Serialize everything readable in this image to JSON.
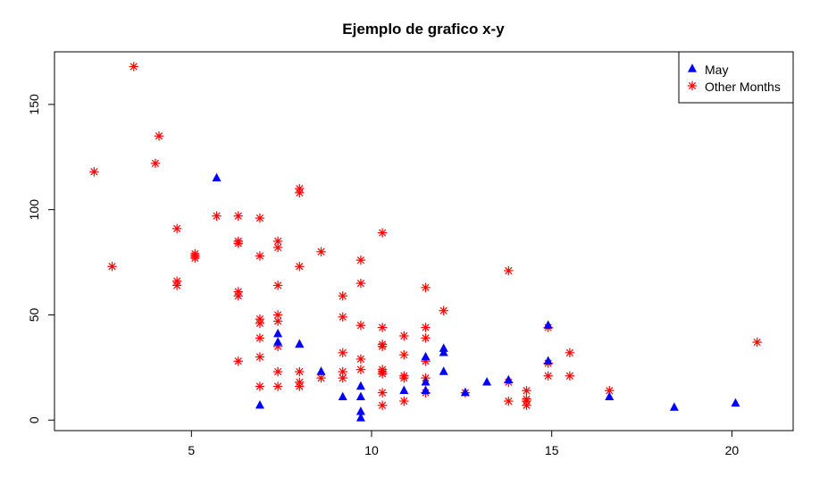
{
  "chart_data": {
    "type": "scatter",
    "title": "Ejemplo de grafico x-y",
    "xlabel": "",
    "ylabel": "",
    "xlim": [
      1.2,
      21.7
    ],
    "ylim": [
      -5,
      175
    ],
    "x_ticks": [
      5,
      10,
      15,
      20
    ],
    "y_ticks": [
      0,
      50,
      100,
      150
    ],
    "grid": false,
    "legend_position": "top-right",
    "series": [
      {
        "name": "May",
        "marker": "triangle",
        "color": "#0000ff",
        "points": [
          [
            5.7,
            115
          ],
          [
            6.9,
            7
          ],
          [
            7.4,
            41
          ],
          [
            7.4,
            37
          ],
          [
            8.0,
            36
          ],
          [
            8.0,
            36
          ],
          [
            8.6,
            23
          ],
          [
            9.2,
            11
          ],
          [
            9.7,
            16
          ],
          [
            9.7,
            11
          ],
          [
            9.7,
            4
          ],
          [
            9.7,
            1
          ],
          [
            10.9,
            14
          ],
          [
            11.5,
            30
          ],
          [
            11.5,
            18
          ],
          [
            11.5,
            14
          ],
          [
            12.0,
            32
          ],
          [
            12.0,
            34
          ],
          [
            12.0,
            23
          ],
          [
            12.6,
            13
          ],
          [
            13.2,
            18
          ],
          [
            13.8,
            19
          ],
          [
            14.9,
            45
          ],
          [
            14.9,
            28
          ],
          [
            16.6,
            11
          ],
          [
            18.4,
            6
          ],
          [
            20.1,
            8
          ]
        ]
      },
      {
        "name": "Other Months",
        "marker": "asterisk",
        "color": "#ff0000",
        "points": [
          [
            2.3,
            118
          ],
          [
            2.8,
            73
          ],
          [
            3.4,
            168
          ],
          [
            4.0,
            122
          ],
          [
            4.1,
            135
          ],
          [
            4.6,
            91
          ],
          [
            4.6,
            66
          ],
          [
            4.6,
            64
          ],
          [
            5.1,
            79
          ],
          [
            5.1,
            77
          ],
          [
            5.1,
            78
          ],
          [
            5.7,
            97
          ],
          [
            6.3,
            97
          ],
          [
            6.3,
            85
          ],
          [
            6.3,
            84
          ],
          [
            6.3,
            61
          ],
          [
            6.3,
            59
          ],
          [
            6.3,
            28
          ],
          [
            6.9,
            96
          ],
          [
            6.9,
            78
          ],
          [
            6.9,
            48
          ],
          [
            6.9,
            46
          ],
          [
            6.9,
            39
          ],
          [
            6.9,
            30
          ],
          [
            6.9,
            16
          ],
          [
            7.4,
            85
          ],
          [
            7.4,
            82
          ],
          [
            7.4,
            64
          ],
          [
            7.4,
            50
          ],
          [
            7.4,
            47
          ],
          [
            7.4,
            35
          ],
          [
            7.4,
            23
          ],
          [
            7.4,
            16
          ],
          [
            8.0,
            110
          ],
          [
            8.0,
            108
          ],
          [
            8.0,
            73
          ],
          [
            8.0,
            23
          ],
          [
            8.0,
            18
          ],
          [
            8.0,
            16
          ],
          [
            8.6,
            80
          ],
          [
            8.6,
            20
          ],
          [
            9.2,
            59
          ],
          [
            9.2,
            49
          ],
          [
            9.2,
            32
          ],
          [
            9.2,
            23
          ],
          [
            9.2,
            20
          ],
          [
            9.7,
            76
          ],
          [
            9.7,
            65
          ],
          [
            9.7,
            45
          ],
          [
            9.7,
            29
          ],
          [
            9.7,
            24
          ],
          [
            10.3,
            89
          ],
          [
            10.3,
            44
          ],
          [
            10.3,
            36
          ],
          [
            10.3,
            35
          ],
          [
            10.3,
            24
          ],
          [
            10.3,
            23
          ],
          [
            10.3,
            22
          ],
          [
            10.3,
            13
          ],
          [
            10.3,
            7
          ],
          [
            10.9,
            40
          ],
          [
            10.9,
            31
          ],
          [
            10.9,
            21
          ],
          [
            10.9,
            20
          ],
          [
            10.9,
            9
          ],
          [
            11.5,
            63
          ],
          [
            11.5,
            44
          ],
          [
            11.5,
            39
          ],
          [
            11.5,
            28
          ],
          [
            11.5,
            20
          ],
          [
            11.5,
            13
          ],
          [
            12.0,
            52
          ],
          [
            12.6,
            13
          ],
          [
            13.8,
            71
          ],
          [
            13.8,
            18
          ],
          [
            13.8,
            9
          ],
          [
            14.3,
            14
          ],
          [
            14.3,
            10
          ],
          [
            14.3,
            9
          ],
          [
            14.3,
            7
          ],
          [
            14.9,
            44
          ],
          [
            14.9,
            27
          ],
          [
            14.9,
            21
          ],
          [
            15.5,
            32
          ],
          [
            15.5,
            21
          ],
          [
            16.6,
            14
          ],
          [
            20.7,
            37
          ]
        ]
      }
    ]
  }
}
